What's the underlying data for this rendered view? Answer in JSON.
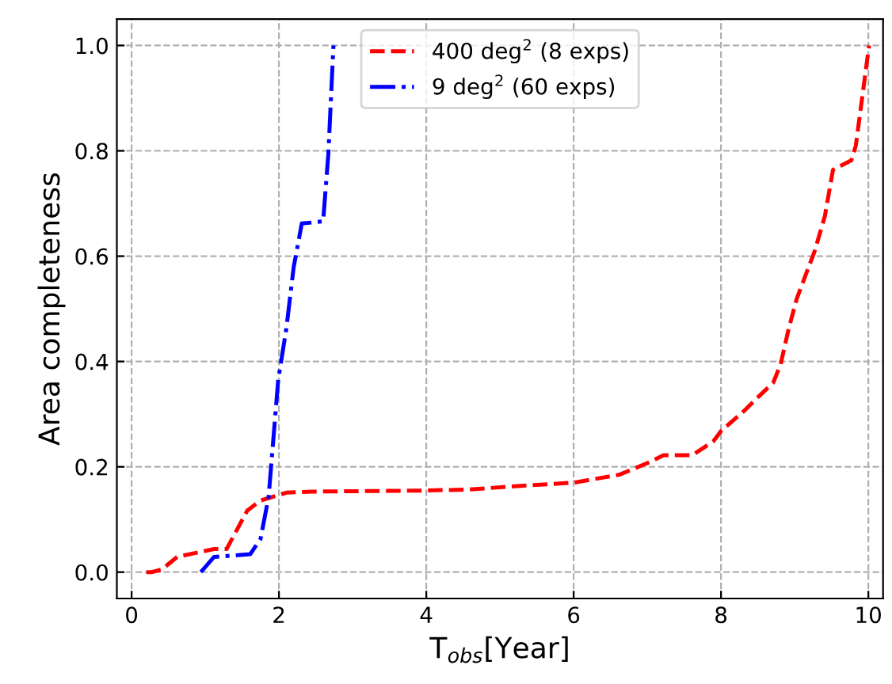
{
  "chart_data": {
    "type": "line",
    "xlabel": "T$_{obs}$[Year]",
    "ylabel": "Area completeness",
    "xlim": [
      -0.2,
      10.2
    ],
    "ylim": [
      -0.05,
      1.05
    ],
    "xticks": [
      0,
      2,
      4,
      6,
      8,
      10
    ],
    "yticks": [
      {
        "value": 0,
        "label": "0.0"
      },
      {
        "value": 0.2,
        "label": "0.2"
      },
      {
        "value": 0.4,
        "label": "0.4"
      },
      {
        "value": 0.6,
        "label": "0.6"
      },
      {
        "value": 0.8,
        "label": "0.8"
      },
      {
        "value": 1,
        "label": "1.0"
      }
    ],
    "grid": true,
    "legend": "top",
    "series": [
      {
        "name": "400 deg$^{2}$ (8 exps)",
        "color": "#ff0000",
        "line_style": "dashed",
        "x": [
          0.2,
          0.27,
          0.41,
          0.62,
          1.12,
          1.29,
          1.57,
          1.75,
          2.1,
          2.45,
          4.0,
          4.58,
          5.2,
          6.0,
          6.62,
          7.05,
          7.22,
          7.61,
          7.9,
          8.0,
          8.32,
          8.5,
          8.71,
          8.81,
          8.92,
          9.03,
          9.27,
          9.41,
          9.52,
          9.77,
          9.83,
          10.01
        ],
        "values": [
          0,
          0,
          0.005,
          0.029,
          0.044,
          0.044,
          0.117,
          0.136,
          0.151,
          0.153,
          0.155,
          0.157,
          0.163,
          0.17,
          0.185,
          0.21,
          0.222,
          0.222,
          0.249,
          0.268,
          0.307,
          0.332,
          0.36,
          0.395,
          0.463,
          0.52,
          0.609,
          0.676,
          0.764,
          0.782,
          0.81,
          1.0
        ]
      },
      {
        "name": "9 deg$^{2}$ (60 exps)",
        "color": "#0000ff",
        "line_style": "dashdot",
        "x": [
          0.94,
          1.12,
          1.61,
          1.75,
          1.86,
          1.99,
          2.1,
          2.2,
          2.31,
          2.6,
          2.67,
          2.74
        ],
        "values": [
          0,
          0.029,
          0.034,
          0.063,
          0.143,
          0.365,
          0.462,
          0.579,
          0.662,
          0.666,
          0.793,
          1.0
        ]
      }
    ]
  }
}
